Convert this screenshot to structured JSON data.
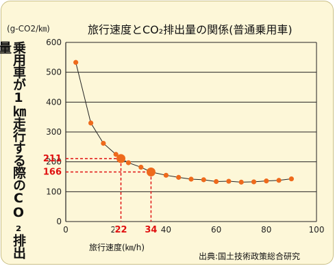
{
  "chart_data": {
    "type": "line",
    "title": "旅行速度とCO₂排出量の関係(普通乗用車)",
    "unit_label": "(g-CO2/㎞)",
    "ylabel": "乗用車が1㎞走行する際のCO₂排出量",
    "xlabel": "旅行速度(㎞/h)",
    "source": "出典:国土技術政策総合研究",
    "xlim": [
      0,
      100
    ],
    "ylim": [
      0,
      600
    ],
    "x_ticks": [
      "0",
      "20",
      "40",
      "60",
      "80",
      "100"
    ],
    "y_ticks": [
      "0",
      "100",
      "200",
      "300",
      "400",
      "500",
      "600"
    ],
    "grid": true,
    "series": [
      {
        "x": [
          4,
          10,
          15,
          20,
          22,
          25,
          30,
          34,
          40,
          45,
          50,
          55,
          60,
          65,
          70,
          75,
          80,
          85,
          90
        ],
        "y": [
          533,
          330,
          262,
          225,
          211,
          197,
          182,
          166,
          155,
          148,
          142,
          140,
          134,
          135,
          132,
          133,
          136,
          138,
          143
        ]
      }
    ],
    "highlights": [
      {
        "x": 22,
        "y": 211,
        "x_label": "22",
        "y_label": "211"
      },
      {
        "x": 34,
        "y": 166,
        "x_label": "34",
        "y_label": "166"
      }
    ],
    "colors": {
      "line": "#222222",
      "marker": "#ee6a1c",
      "highlight_text": "#e01010",
      "guide": "#e01010",
      "background": "#fdf7d8",
      "grid": "#222222"
    }
  }
}
